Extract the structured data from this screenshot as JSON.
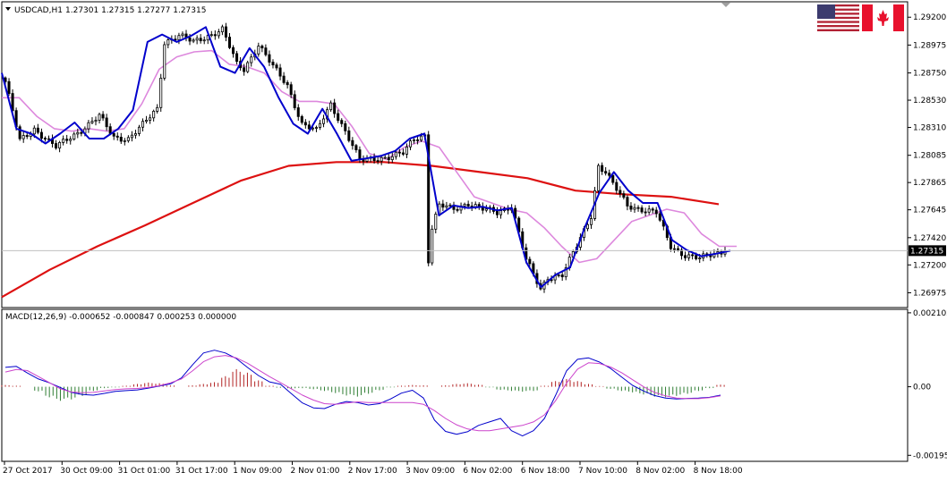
{
  "window": {
    "symbol_title": "USDCAD,H1",
    "ohlc": "1.27301 1.27315 1.27277 1.27315",
    "icons": [
      "us-flag-icon",
      "canada-flag-icon",
      "dropdown-arrow-icon",
      "chart-shift-marker-icon"
    ]
  },
  "price_axis": {
    "ticks": [
      "1.29200",
      "1.28975",
      "1.28750",
      "1.28530",
      "1.28310",
      "1.28085",
      "1.27865",
      "1.27645",
      "1.27420",
      "1.27200",
      "1.26975"
    ],
    "current_price_label": "1.27315",
    "current_price_value": 1.27315,
    "range": [
      1.2687,
      1.2931
    ]
  },
  "macd_axis": {
    "ticks": [
      "0.002102",
      "0.00",
      "-0.00195"
    ],
    "range": [
      -0.00207,
      0.00215
    ]
  },
  "macd_header": "MACD(12,26,9) -0.000652 -0.000847 0.000253 0.000000",
  "time_axis": {
    "labels": [
      "27 Oct 2017",
      "30 Oct 09:00",
      "31 Oct 01:00",
      "31 Oct 17:00",
      "1 Nov 09:00",
      "2 Nov 01:00",
      "2 Nov 17:00",
      "3 Nov 09:00",
      "6 Nov 02:00",
      "6 Nov 18:00",
      "7 Nov 10:00",
      "8 Nov 02:00",
      "8 Nov 18:00"
    ]
  },
  "colors": {
    "bull_candle": "#ffffff",
    "bear_candle": "#000000",
    "ma_fast": "#0000cc",
    "ma_mid": "#dd88dd",
    "ma_slow": "#dd1111",
    "hist_pos": "#b22222",
    "hist_neg": "#2e7d32",
    "macd_line": "#0000cc",
    "signal_line": "#cc44cc"
  },
  "chart_data": [
    {
      "type": "candlestick",
      "title": "USDCAD,H1",
      "x": "hourly bars, 27 Oct 2017 – 8 Nov 18:00",
      "ylim": [
        1.2687,
        1.2931
      ],
      "close_anchors": [
        [
          0,
          1.2868
        ],
        [
          4,
          1.282
        ],
        [
          8,
          1.283
        ],
        [
          14,
          1.2815
        ],
        [
          20,
          1.2827
        ],
        [
          26,
          1.284
        ],
        [
          30,
          1.2823
        ],
        [
          34,
          1.2822
        ],
        [
          38,
          1.2833
        ],
        [
          42,
          1.2846
        ],
        [
          44,
          1.29
        ],
        [
          48,
          1.2905
        ],
        [
          52,
          1.29
        ],
        [
          56,
          1.2905
        ],
        [
          60,
          1.291
        ],
        [
          64,
          1.2882
        ],
        [
          66,
          1.2878
        ],
        [
          70,
          1.2898
        ],
        [
          74,
          1.288
        ],
        [
          78,
          1.2865
        ],
        [
          82,
          1.2834
        ],
        [
          86,
          1.2828
        ],
        [
          90,
          1.285
        ],
        [
          94,
          1.2828
        ],
        [
          98,
          1.2804
        ],
        [
          102,
          1.2806
        ],
        [
          106,
          1.2807
        ],
        [
          110,
          1.281
        ],
        [
          113,
          1.2822
        ],
        [
          116,
          1.2825
        ],
        [
          117,
          1.2724
        ],
        [
          118,
          1.275
        ],
        [
          120,
          1.2768
        ],
        [
          124,
          1.2765
        ],
        [
          128,
          1.277
        ],
        [
          132,
          1.2765
        ],
        [
          136,
          1.2762
        ],
        [
          140,
          1.2768
        ],
        [
          144,
          1.2724
        ],
        [
          148,
          1.27
        ],
        [
          150,
          1.271
        ],
        [
          154,
          1.2712
        ],
        [
          158,
          1.2735
        ],
        [
          162,
          1.276
        ],
        [
          164,
          1.28
        ],
        [
          166,
          1.2795
        ],
        [
          168,
          1.2785
        ],
        [
          172,
          1.2768
        ],
        [
          176,
          1.2765
        ],
        [
          180,
          1.2762
        ],
        [
          184,
          1.2735
        ],
        [
          188,
          1.2728
        ],
        [
          192,
          1.2725
        ],
        [
          196,
          1.2729
        ],
        [
          199,
          1.27315
        ]
      ],
      "series": [
        {
          "name": "fast MA",
          "values": [
            1.2875,
            1.283,
            1.2826,
            1.2818,
            1.2826,
            1.2835,
            1.2822,
            1.2822,
            1.283,
            1.2845,
            1.29,
            1.2906,
            1.29,
            1.2905,
            1.2912,
            1.288,
            1.2875,
            1.2895,
            1.288,
            1.2855,
            1.2834,
            1.2826,
            1.2846,
            1.2826,
            1.2804,
            1.2806,
            1.2808,
            1.2812,
            1.2822,
            1.2826,
            1.276,
            1.2768,
            1.2766,
            1.2767,
            1.2764,
            1.2766,
            1.2722,
            1.2702,
            1.2712,
            1.2718,
            1.275,
            1.2778,
            1.2795,
            1.278,
            1.277,
            1.277,
            1.274,
            1.2732,
            1.2727,
            1.2729,
            1.27315
          ]
        },
        {
          "name": "mid MA",
          "values": [
            1.2855,
            1.2855,
            1.284,
            1.283,
            1.2828,
            1.283,
            1.2828,
            1.283,
            1.285,
            1.2878,
            1.2888,
            1.2892,
            1.2893,
            1.2882,
            1.288,
            1.2875,
            1.286,
            1.2852,
            1.2852,
            1.285,
            1.2832,
            1.281,
            1.2805,
            1.2815,
            1.282,
            1.2815,
            1.2795,
            1.2775,
            1.277,
            1.2765,
            1.2762,
            1.275,
            1.2735,
            1.2722,
            1.2725,
            1.274,
            1.2755,
            1.276,
            1.2765,
            1.2762,
            1.2745,
            1.2735,
            1.2735
          ]
        },
        {
          "name": "slow MA",
          "values": [
            1.2694,
            1.2716,
            1.2735,
            1.2752,
            1.277,
            1.2788,
            1.28,
            1.2803,
            1.2803,
            1.28,
            1.2795,
            1.279,
            1.278,
            1.2777,
            1.2775,
            1.2769
          ]
        }
      ]
    },
    {
      "type": "bar",
      "title": "MACD(12,26,9)",
      "ylim": [
        -0.00207,
        0.00215
      ],
      "series": [
        {
          "name": "MACD",
          "values": [
            0.00055,
            0.00058,
            0.00039,
            0.00022,
            0.00011,
            -2e-05,
            -0.00016,
            -0.00022,
            -0.00024,
            -0.00019,
            -0.00013,
            -0.00011,
            -9e-05,
            -4e-05,
            2e-05,
            8e-05,
            0.00025,
            0.00062,
            0.00096,
            0.00104,
            0.00096,
            0.0008,
            0.00055,
            0.00032,
            0.00014,
            7e-05,
            -0.0002,
            -0.00046,
            -0.0006,
            -0.00062,
            -0.0005,
            -0.00042,
            -0.00045,
            -0.00052,
            -0.00048,
            -0.00035,
            -0.00018,
            -0.0001,
            -0.00032,
            -0.00095,
            -0.00127,
            -0.00135,
            -0.00128,
            -0.0011,
            -0.001,
            -0.0009,
            -0.00125,
            -0.0014,
            -0.00125,
            -0.0009,
            -0.00025,
            0.00045,
            0.00078,
            0.00082,
            0.0007,
            0.00052,
            0.00028,
            4e-05,
            -0.00012,
            -0.00025,
            -0.00032,
            -0.00035,
            -0.00033,
            -0.00032,
            -0.0003,
            -0.00024
          ]
        },
        {
          "name": "Signal",
          "values": [
            0.00042,
            0.00049,
            0.00046,
            0.00029,
            0.00012,
            -6e-05,
            -0.00015,
            -0.00017,
            -0.00016,
            -0.00012,
            -8e-05,
            -6e-05,
            -5e-05,
            -2e-05,
            3e-05,
            0.00011,
            0.00022,
            0.00045,
            0.00071,
            0.00085,
            0.00089,
            0.00082,
            0.00067,
            0.00048,
            0.00029,
            0.00012,
            -6e-05,
            -0.00024,
            -0.00038,
            -0.00048,
            -0.0005,
            -0.00046,
            -0.00043,
            -0.00045,
            -0.00045,
            -0.00045,
            -0.00045,
            -0.00045,
            -0.0005,
            -0.00068,
            -0.0009,
            -0.00108,
            -0.0012,
            -0.00125,
            -0.00125,
            -0.0012,
            -0.00115,
            -0.0011,
            -0.001,
            -0.0008,
            -0.0004,
            0.0001,
            0.0005,
            0.00068,
            0.00066,
            0.00056,
            0.0004,
            0.0002,
            0.0,
            -0.00016,
            -0.00026,
            -0.00032,
            -0.00034,
            -0.00034,
            -0.00031,
            -0.00026
          ]
        },
        {
          "name": "Histogram",
          "values": [
            5e-05,
            3e-05,
            0.0,
            -0.00013,
            -0.0003,
            -0.0004,
            -0.00036,
            -0.00026,
            -0.00012,
            -4e-05,
            -2e-05,
            3e-05,
            8e-05,
            0.00012,
            0.0001,
            4e-05,
            0.0,
            4e-05,
            8e-05,
            0.00013,
            0.0003,
            0.0005,
            0.0004,
            0.00018,
            3e-05,
            -3e-05,
            -5e-05,
            -4e-05,
            -7e-05,
            -0.00012,
            -0.00018,
            -0.00025,
            -0.00028,
            -0.0002,
            -0.0001,
            -2e-05,
            3e-05,
            5e-05,
            4e-05,
            0.0,
            4e-05,
            8e-05,
            0.0001,
            6e-05,
            -2e-05,
            -9e-05,
            -0.00012,
            -0.00014,
            -0.00012,
            3e-05,
            0.00016,
            0.00022,
            0.00016,
            8e-05,
            2e-05,
            -6e-05,
            -0.00012,
            -0.00016,
            -0.00022,
            -0.00028,
            -0.0003,
            -0.00026,
            -0.0002,
            -0.00012,
            -4e-05,
            6e-05
          ]
        }
      ]
    }
  ]
}
